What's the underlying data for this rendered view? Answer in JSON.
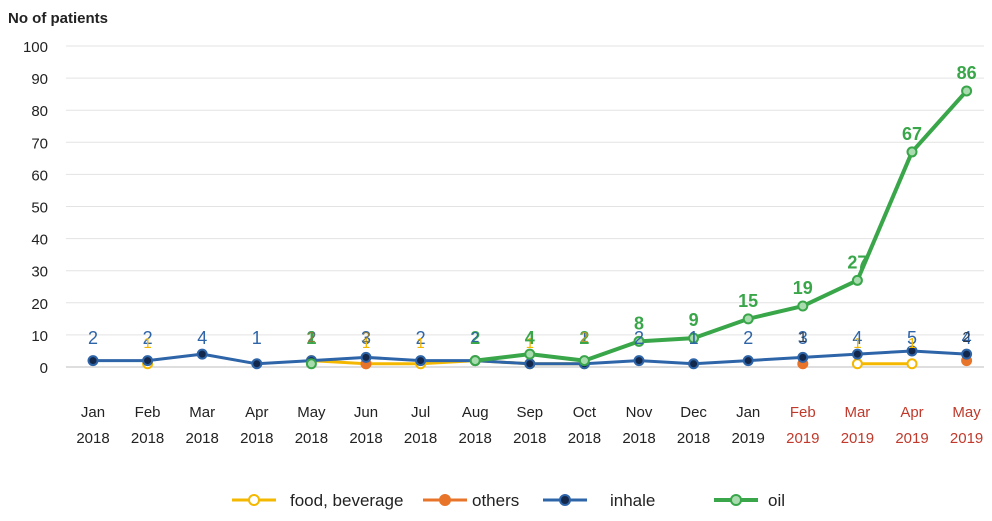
{
  "chart_data": {
    "type": "line",
    "ylabel": "No of patients",
    "xlabel": "",
    "ylim": [
      0,
      100
    ],
    "yticks": [
      0,
      10,
      20,
      30,
      40,
      50,
      60,
      70,
      80,
      90,
      100
    ],
    "grid": true,
    "legend_position": "bottom",
    "categories": [
      {
        "top": "Jan",
        "bottom": "2018",
        "highlight": false
      },
      {
        "top": "Feb",
        "bottom": "2018",
        "highlight": false
      },
      {
        "top": "Mar",
        "bottom": "2018",
        "highlight": false
      },
      {
        "top": "Apr",
        "bottom": "2018",
        "highlight": false
      },
      {
        "top": "May",
        "bottom": "2018",
        "highlight": false
      },
      {
        "top": "Jun",
        "bottom": "2018",
        "highlight": false
      },
      {
        "top": "Jul",
        "bottom": "2018",
        "highlight": false
      },
      {
        "top": "Aug",
        "bottom": "2018",
        "highlight": false
      },
      {
        "top": "Sep",
        "bottom": "2018",
        "highlight": false
      },
      {
        "top": "Oct",
        "bottom": "2018",
        "highlight": false
      },
      {
        "top": "Nov",
        "bottom": "2018",
        "highlight": false
      },
      {
        "top": "Dec",
        "bottom": "2018",
        "highlight": false
      },
      {
        "top": "Jan",
        "bottom": "2019",
        "highlight": false
      },
      {
        "top": "Feb",
        "bottom": "2019",
        "highlight": true
      },
      {
        "top": "Mar",
        "bottom": "2019",
        "highlight": true
      },
      {
        "top": "Apr",
        "bottom": "2019",
        "highlight": true
      },
      {
        "top": "May",
        "bottom": "2019",
        "highlight": true
      }
    ],
    "highlight_color": "#c0392b",
    "series": [
      {
        "name": "food, beverage",
        "color": "#f5b800",
        "marker_fill": "#ffffff",
        "values": [
          null,
          1,
          null,
          null,
          2,
          1,
          1,
          2,
          1,
          1,
          null,
          null,
          null,
          null,
          1,
          1,
          null
        ],
        "labels": [
          "",
          "1",
          "",
          "",
          "",
          "1",
          "1",
          "",
          "1",
          "",
          "",
          "",
          "",
          "",
          "1",
          "1",
          ""
        ]
      },
      {
        "name": "others",
        "color": "#e8742a",
        "marker_fill": "#e8742a",
        "values": [
          null,
          null,
          null,
          null,
          null,
          1,
          null,
          null,
          null,
          null,
          null,
          null,
          null,
          1,
          null,
          null,
          2
        ],
        "labels": [
          "",
          "",
          "",
          "",
          "",
          "",
          "",
          "",
          "",
          "",
          "",
          "",
          "",
          "",
          "",
          "",
          ""
        ]
      },
      {
        "name": "inhale",
        "color": "#2e64a8",
        "marker_fill": "#14284b",
        "values": [
          2,
          2,
          4,
          1,
          2,
          3,
          2,
          2,
          1,
          1,
          2,
          1,
          2,
          3,
          4,
          5,
          4
        ],
        "labels": [
          "2",
          "2",
          "4",
          "1",
          "2",
          "3",
          "2",
          "",
          "",
          "1",
          "2",
          "1",
          "2",
          "3",
          "4",
          "5",
          "4"
        ]
      },
      {
        "name": "oil",
        "color": "#3aa64a",
        "marker_fill": "#a8dcae",
        "values": [
          null,
          null,
          null,
          null,
          1,
          null,
          null,
          2,
          4,
          2,
          8,
          9,
          15,
          19,
          27,
          67,
          86
        ],
        "labels": [
          "",
          "",
          "",
          "",
          "1",
          "",
          "",
          "2",
          "4",
          "2",
          "8",
          "9",
          "15",
          "19",
          "27",
          "67",
          "86"
        ]
      }
    ],
    "extra_labels": [
      {
        "index": 4,
        "text": "2",
        "color": "#8a7a3a"
      },
      {
        "index": 5,
        "text": "2",
        "color": "#8a7a3a"
      },
      {
        "index": 7,
        "text": "2",
        "color": "#2e64a8"
      },
      {
        "index": 9,
        "text": "2",
        "color": "#b89a30"
      },
      {
        "index": 13,
        "text": "1",
        "color": "#2e3a4a"
      },
      {
        "index": 16,
        "text": "2",
        "color": "#2e3a4a"
      }
    ]
  }
}
